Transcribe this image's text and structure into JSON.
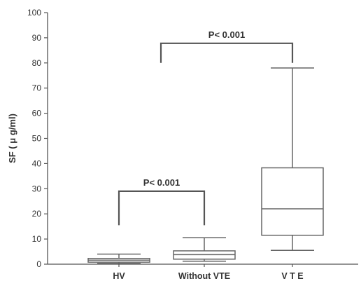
{
  "chart_data": {
    "type": "box",
    "title": "",
    "xlabel": "",
    "ylabel": "SF ( μ g/ml)",
    "ylim": [
      0,
      100
    ],
    "yticks": [
      0,
      10,
      20,
      30,
      40,
      50,
      60,
      70,
      80,
      90,
      100
    ],
    "categories": [
      "HV",
      "Without VTE",
      "V T E"
    ],
    "boxes": [
      {
        "category": "HV",
        "min": 0.3,
        "q1": 0.8,
        "median": 1.6,
        "q3": 2.3,
        "max": 4.0
      },
      {
        "category": "Without VTE",
        "min": 1.2,
        "q1": 2.0,
        "median": 3.8,
        "q3": 5.3,
        "max": 10.5
      },
      {
        "category": "V T E",
        "min": 5.5,
        "q1": 11.5,
        "median": 22.0,
        "q3": 38.3,
        "max": 78.0
      }
    ],
    "annotations": [
      {
        "text": "P< 0.001",
        "from": "HV",
        "to": "Without VTE",
        "left_y": 15.5,
        "right_y": 15.5,
        "top_y": 29.0
      },
      {
        "text": "P< 0.001",
        "from": "HV",
        "to": "V T E",
        "left_y": 80.0,
        "right_y": 80.0,
        "top_y": 87.8
      }
    ],
    "grid": false,
    "legend": "none"
  }
}
